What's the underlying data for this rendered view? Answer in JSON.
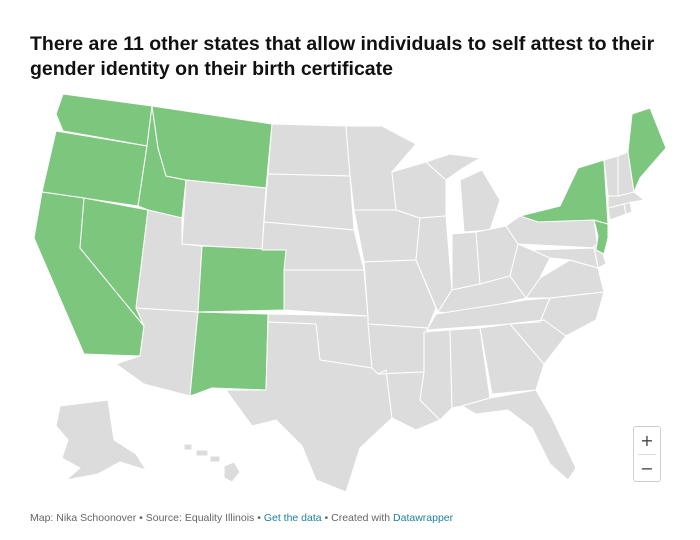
{
  "title": "There are 11 other states that allow individuals to self attest to their gender identity on their birth certificate",
  "colors": {
    "highlight": "#7dc67e",
    "default": "#dcdcdc",
    "border": "#ffffff"
  },
  "highlighted_states": [
    "Washington",
    "Oregon",
    "California",
    "Nevada",
    "Idaho",
    "Montana",
    "Colorado",
    "New Mexico",
    "New York",
    "New Jersey",
    "Maine"
  ],
  "zoom": {
    "in_label": "+",
    "out_label": "−"
  },
  "footer": {
    "map_credit": "Map: Nika Schoonover",
    "sep1": " • ",
    "source": "Source: Equality Illinois",
    "sep2": " • ",
    "get_data": "Get the data",
    "sep3": " • ",
    "created_with": "Created with ",
    "datawrapper": "Datawrapper"
  }
}
